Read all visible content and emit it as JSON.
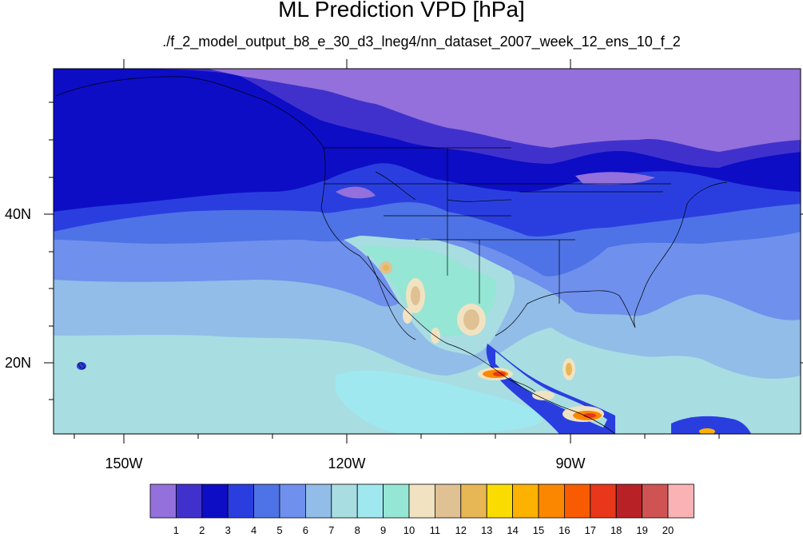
{
  "title": "ML Prediction VPD [hPa]",
  "subtitle": "./f_2_model_output_b8_e_30_d3_lneg4/nn_dataset_2007_week_12_ens_10_f_2",
  "lat_labels": [
    "40N",
    "20N"
  ],
  "lon_labels": [
    "150W",
    "120W",
    "90W"
  ],
  "colorbar": {
    "labels": [
      "1",
      "2",
      "3",
      "4",
      "5",
      "6",
      "7",
      "8",
      "9",
      "10",
      "11",
      "12",
      "13",
      "14",
      "15",
      "16",
      "17",
      "18",
      "19",
      "20"
    ],
    "colors": [
      "#9370db",
      "#4131cc",
      "#0d0dc6",
      "#2a3ee0",
      "#4e73e6",
      "#6f90ec",
      "#91bde8",
      "#a8dde2",
      "#9fe8f0",
      "#95e6d4",
      "#f1e3c1",
      "#dfc194",
      "#e8b755",
      "#fbdc00",
      "#fdb100",
      "#fb8700",
      "#f95c00",
      "#e8371a",
      "#b82226",
      "#cf5353",
      "#fbb2b4"
    ]
  }
}
